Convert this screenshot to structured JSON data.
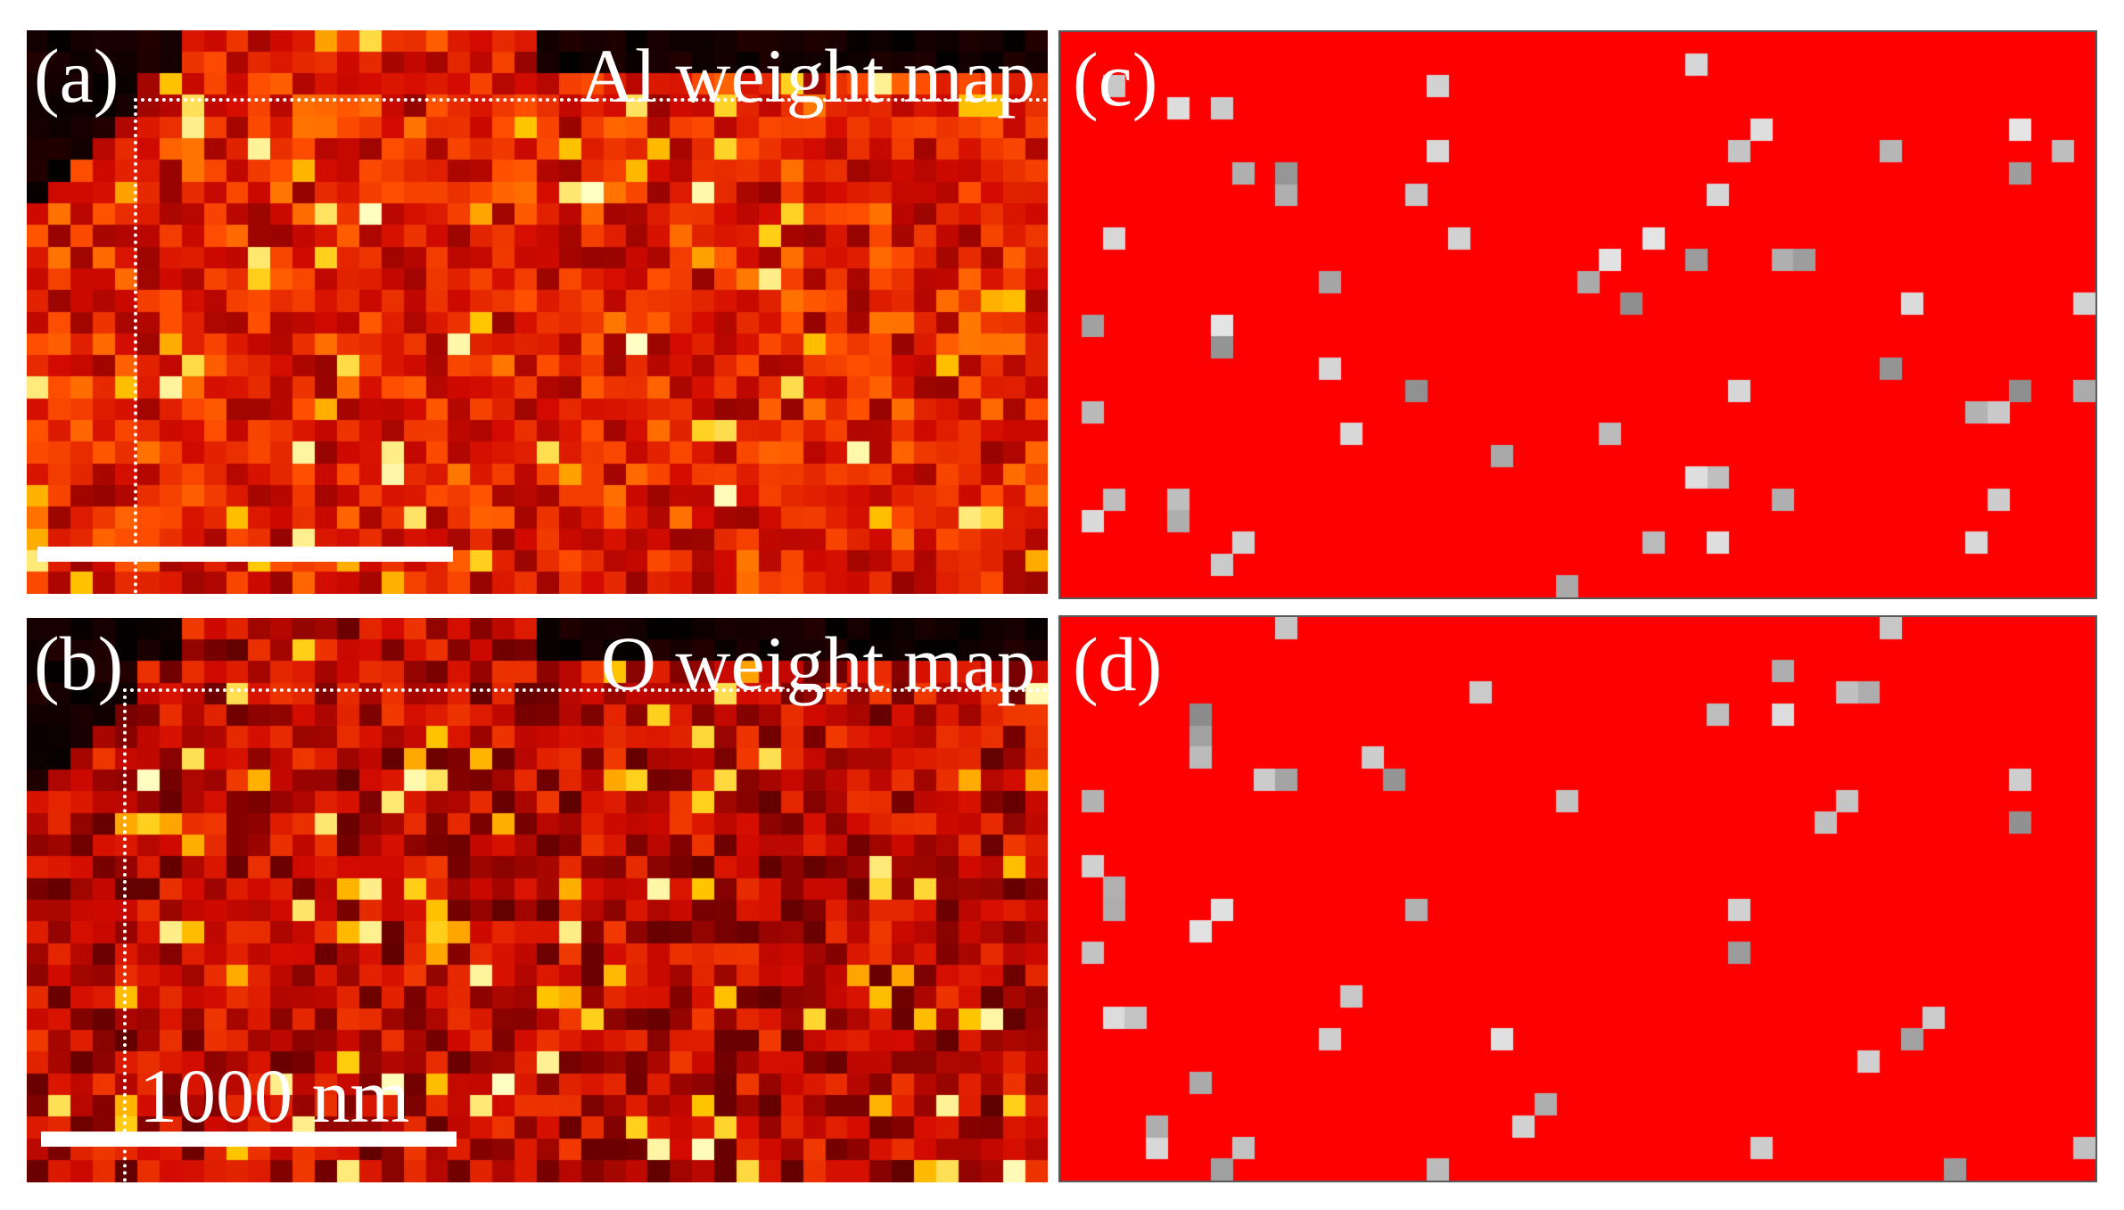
{
  "panels": {
    "a": {
      "label": "(a)",
      "title": "Al weight map"
    },
    "b": {
      "label": "(b)",
      "title": "O weight map",
      "scalebar_label": "1000 nm"
    },
    "c": {
      "label": "(c)"
    },
    "d": {
      "label": "(d)"
    }
  },
  "colors": {
    "background_right": "#ff0000",
    "heat_dark": "#000000",
    "heat_mid": "#c40000",
    "heat_bright": "#ffd000",
    "outlier_gray": "#9a9a9a",
    "overlay_white": "#ffffff"
  }
}
